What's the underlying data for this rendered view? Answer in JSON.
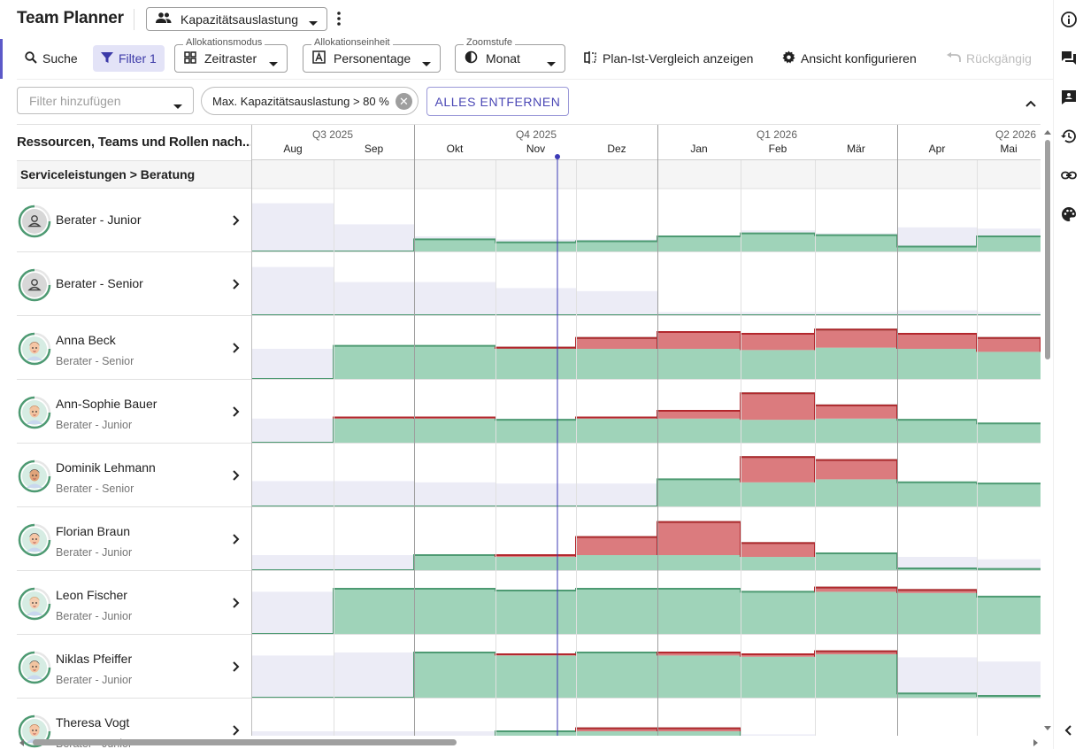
{
  "app": {
    "title": "Team Planner",
    "view_selector": "Kapazitätsauslastung"
  },
  "toolbar": {
    "search": "Suche",
    "filter": "Filter 1",
    "alloc_mode": {
      "label": "Allokationsmodus",
      "value": "Zeitraster"
    },
    "alloc_unit": {
      "label": "Allokationseinheit",
      "value": "Personentage"
    },
    "zoom": {
      "label": "Zoomstufe",
      "value": "Monat"
    },
    "plan_actual": "Plan-Ist-Vergleich anzeigen",
    "configure": "Ansicht konfigurieren",
    "undo": "Rückgängig"
  },
  "filterbar": {
    "add_placeholder": "Filter hinzufügen",
    "chip": "Max. Kapazitätsauslastung > 80 %",
    "remove_all": "ALLES ENTFERNEN"
  },
  "grid": {
    "left_header": "Ressourcen, Teams und Rollen nach...",
    "group": "Serviceleistungen > Beratung",
    "quarters": [
      {
        "label": "Q3 2025"
      },
      {
        "label": "Q4 2025"
      },
      {
        "label": "Q1 2026"
      },
      {
        "label": "Q2 2026"
      }
    ],
    "months": [
      "Aug",
      "Sep",
      "Okt",
      "Nov",
      "Dez",
      "Jan",
      "Feb",
      "Mär",
      "Apr",
      "Mai"
    ],
    "rows": [
      {
        "name": "Berater - Junior",
        "role": "",
        "type": "role",
        "capacity": [
          0.8,
          0.45,
          0.25,
          0.2,
          0.2,
          0.25,
          0.35,
          0.3,
          0.4,
          0.38
        ],
        "booked": [
          0,
          0,
          0.2,
          0.15,
          0.17,
          0.25,
          0.3,
          0.27,
          0.08,
          0.25
        ]
      },
      {
        "name": "Berater - Senior",
        "role": "",
        "type": "role",
        "capacity": [
          0.8,
          0.55,
          0.55,
          0.45,
          0.4,
          0.05,
          0.05,
          0.05,
          0.08,
          0.05
        ],
        "booked": [
          0,
          0,
          0,
          0,
          0,
          0,
          0,
          0,
          0,
          0
        ]
      },
      {
        "name": "Anna Beck",
        "role": "Berater - Senior",
        "type": "person",
        "capacity": [
          0.5,
          0.55,
          0.55,
          0.5,
          0.5,
          0.5,
          0.48,
          0.52,
          0.5,
          0.45
        ],
        "booked": [
          0,
          0.55,
          0.55,
          0.52,
          0.68,
          0.78,
          0.75,
          0.82,
          0.75,
          0.68
        ]
      },
      {
        "name": "Ann-Sophie Bauer",
        "role": "Berater - Junior",
        "type": "person",
        "capacity": [
          0.4,
          0.4,
          0.4,
          0.4,
          0.4,
          0.4,
          0.38,
          0.4,
          0.38,
          0.32
        ],
        "booked": [
          0,
          0.42,
          0.42,
          0.38,
          0.42,
          0.53,
          0.82,
          0.62,
          0.38,
          0.32
        ]
      },
      {
        "name": "Dominik Lehmann",
        "role": "Berater - Senior",
        "type": "person",
        "capacity": [
          0.42,
          0.42,
          0.4,
          0.38,
          0.38,
          0.45,
          0.4,
          0.45,
          0.4,
          0.38
        ],
        "booked": [
          0,
          0,
          0,
          0,
          0,
          0.45,
          0.82,
          0.77,
          0.4,
          0.38
        ]
      },
      {
        "name": "Florian Braun",
        "role": "Berater - Junior",
        "type": "person",
        "capacity": [
          0.25,
          0.25,
          0.25,
          0.22,
          0.25,
          0.25,
          0.22,
          0.28,
          0.22,
          0.18
        ],
        "booked": [
          0,
          0,
          0.25,
          0.25,
          0.55,
          0.8,
          0.45,
          0.28,
          0.03,
          0.02
        ]
      },
      {
        "name": "Leon Fischer",
        "role": "Berater - Junior",
        "type": "person",
        "capacity": [
          0.7,
          0.75,
          0.75,
          0.72,
          0.75,
          0.75,
          0.7,
          0.7,
          0.68,
          0.62
        ],
        "booked": [
          0,
          0.75,
          0.75,
          0.72,
          0.75,
          0.75,
          0.7,
          0.77,
          0.73,
          0.62
        ]
      },
      {
        "name": "Niklas Pfeiffer",
        "role": "Berater - Junior",
        "type": "person",
        "capacity": [
          0.7,
          0.75,
          0.75,
          0.7,
          0.75,
          0.7,
          0.68,
          0.72,
          0.67,
          0.6
        ],
        "booked": [
          0,
          0,
          0.75,
          0.72,
          0.75,
          0.75,
          0.72,
          0.77,
          0.07,
          0.03
        ]
      },
      {
        "name": "Theresa Vogt",
        "role": "Berater - Junior",
        "type": "person",
        "capacity": [
          0.5,
          0.5,
          0.5,
          0.5,
          0.5,
          0.5,
          0.45,
          0.4,
          0.4,
          0.4
        ],
        "booked": [
          0,
          0,
          0,
          0.5,
          0.55,
          0.55,
          0,
          0,
          0,
          0
        ]
      }
    ]
  },
  "colors": {
    "accent": "#5c59c8",
    "over": "#db7b7e",
    "over_line": "#b3272d",
    "ok": "#9fd3b9",
    "ok_line": "#4d9a72",
    "capacity": "#ececf6",
    "today": "#3c3ab6"
  }
}
